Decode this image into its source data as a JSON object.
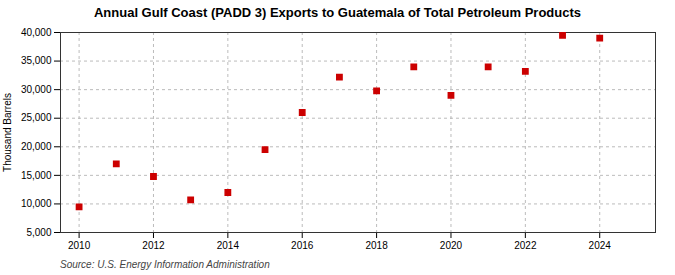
{
  "chart_data": {
    "type": "scatter",
    "title": "Annual Gulf Coast (PADD 3) Exports to Guatemala of Total Petroleum Products",
    "ylabel": "Thousand Barrels",
    "source": "Source: U.S. Energy Information Administration",
    "x": [
      2010,
      2011,
      2012,
      2013,
      2014,
      2015,
      2016,
      2017,
      2018,
      2019,
      2020,
      2021,
      2022,
      2023,
      2024
    ],
    "values": [
      9500,
      17000,
      14800,
      10700,
      12000,
      19500,
      26000,
      32200,
      29800,
      34000,
      29000,
      34000,
      33200,
      39500,
      39000
    ],
    "color": "#cc0000",
    "marker": "square",
    "xlim": [
      2009.5,
      2025.5
    ],
    "xticks": [
      2010,
      2012,
      2014,
      2016,
      2018,
      2020,
      2022,
      2024
    ],
    "ylim": [
      5000,
      40000
    ],
    "yticks": [
      {
        "value": 5000,
        "label": "5,000"
      },
      {
        "value": 10000,
        "label": "10,000"
      },
      {
        "value": 15000,
        "label": "15,000"
      },
      {
        "value": 20000,
        "label": "20,000"
      },
      {
        "value": 25000,
        "label": "25,000"
      },
      {
        "value": 30000,
        "label": "30,000"
      },
      {
        "value": 35000,
        "label": "35,000"
      },
      {
        "value": 40000,
        "label": "40,000"
      }
    ],
    "grid": true
  }
}
